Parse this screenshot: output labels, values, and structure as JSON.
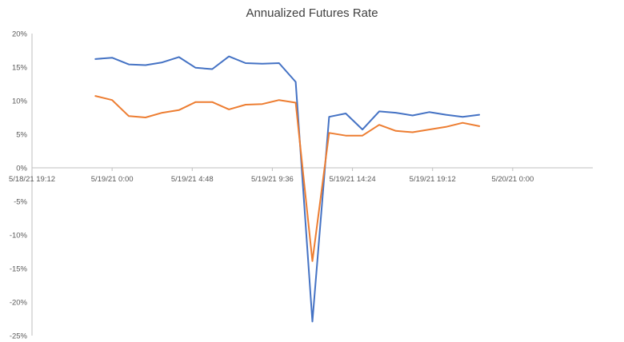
{
  "chart_data": {
    "type": "line",
    "title": "Annualized Futures Rate",
    "xlabel": "",
    "ylabel": "",
    "y_ticks": [
      "20%",
      "15%",
      "10%",
      "5%",
      "0%",
      "-5%",
      "-10%",
      "-15%",
      "-20%",
      "-25%"
    ],
    "ylim": [
      -0.25,
      0.2
    ],
    "x_ticks": [
      "5/18/21 19:12",
      "5/19/21 0:00",
      "5/19/21 4:48",
      "5/19/21 9:36",
      "5/19/21 14:24",
      "5/19/21 19:12",
      "5/20/21 0:00"
    ],
    "xlim": [
      "2021-05-18T19:12",
      "2021-05-20T04:48"
    ],
    "grid": false,
    "legend": "none",
    "x": [
      "2021-05-18T23:00",
      "2021-05-19T00:00",
      "2021-05-19T01:00",
      "2021-05-19T02:00",
      "2021-05-19T03:00",
      "2021-05-19T04:00",
      "2021-05-19T05:00",
      "2021-05-19T06:00",
      "2021-05-19T07:00",
      "2021-05-19T08:00",
      "2021-05-19T09:00",
      "2021-05-19T10:00",
      "2021-05-19T11:00",
      "2021-05-19T12:00",
      "2021-05-19T13:00",
      "2021-05-19T14:00",
      "2021-05-19T15:00",
      "2021-05-19T16:00",
      "2021-05-19T17:00",
      "2021-05-19T18:00",
      "2021-05-19T19:00",
      "2021-05-19T20:00",
      "2021-05-19T21:00",
      "2021-05-19T22:00",
      "2021-05-19T23:00"
    ],
    "series": [
      {
        "color": "#4472c4",
        "values": [
          0.162,
          0.164,
          0.154,
          0.153,
          0.157,
          0.165,
          0.149,
          0.147,
          0.166,
          0.156,
          0.155,
          0.156,
          0.128,
          -0.229,
          0.076,
          0.081,
          0.057,
          0.084,
          0.082,
          0.078,
          0.083,
          0.079,
          0.076,
          0.079,
          null
        ]
      },
      {
        "color": "#ed7d31",
        "values": [
          0.107,
          0.101,
          0.077,
          0.075,
          0.082,
          0.086,
          0.098,
          0.098,
          0.087,
          0.094,
          0.095,
          0.101,
          0.097,
          -0.139,
          0.052,
          0.048,
          0.048,
          0.064,
          0.055,
          0.053,
          0.057,
          0.061,
          0.067,
          0.062,
          null
        ]
      }
    ]
  }
}
